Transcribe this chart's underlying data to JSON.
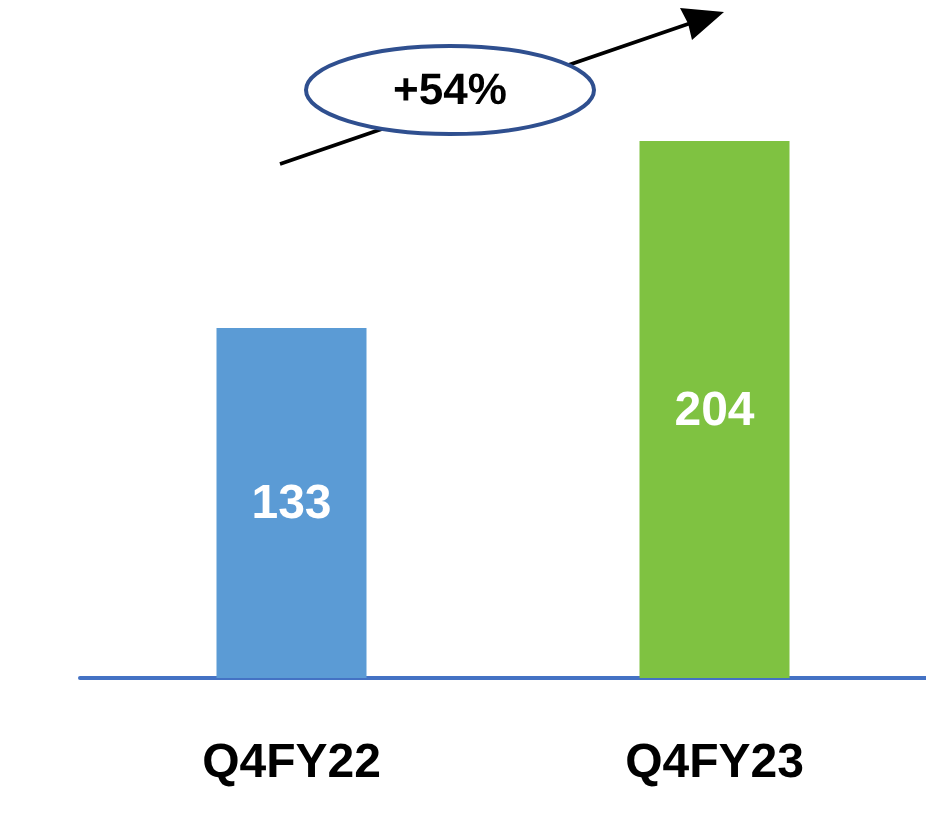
{
  "chart_data": {
    "type": "bar",
    "categories": [
      "Q4FY22",
      "Q4FY23"
    ],
    "values": [
      133,
      204
    ],
    "colors": [
      "#5b9bd5",
      "#7fc241"
    ],
    "data_labels": true,
    "tick_labels": "x",
    "annotations": [
      "+54%"
    ]
  }
}
